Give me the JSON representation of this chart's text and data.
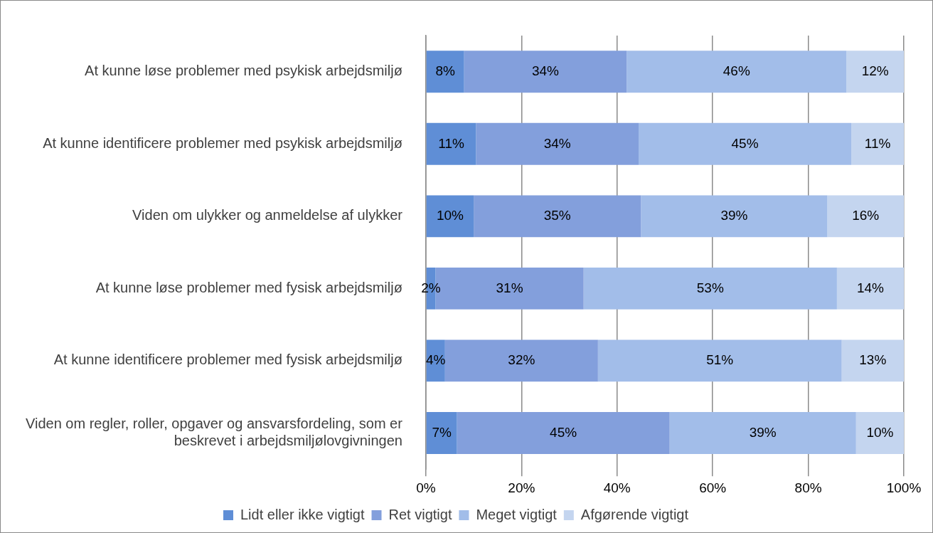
{
  "chart_data": {
    "type": "bar",
    "orientation": "horizontal",
    "stacked": true,
    "categories": [
      "At kunne løse problemer med psykisk arbejdsmiljø",
      "At kunne identificere problemer med psykisk arbejdsmiljø",
      "Viden om ulykker og anmeldelse af ulykker",
      "At kunne løse problemer med fysisk arbejdsmiljø",
      "At kunne identificere problemer med fysisk arbejdsmiljø",
      "Viden om regler, roller, opgaver og ansvarsfordeling, som er beskrevet i arbejdsmiljølovgivningen"
    ],
    "series": [
      {
        "name": "Lidt eller ikke vigtigt",
        "color": "#5f8ed6",
        "values": [
          8,
          10.5,
          10,
          2,
          4,
          6.5
        ],
        "value_labels": [
          "8%",
          "11%",
          "10%",
          "2%",
          "4%",
          "7%"
        ]
      },
      {
        "name": "Ret vigtigt",
        "color": "#839fdc",
        "values": [
          34,
          34,
          35,
          31,
          32,
          44.5
        ],
        "value_labels": [
          "34%",
          "34%",
          "35%",
          "31%",
          "32%",
          "45%"
        ]
      },
      {
        "name": "Meget vigtigt",
        "color": "#a2bde9",
        "values": [
          46,
          44.5,
          39,
          53,
          51,
          39
        ],
        "value_labels": [
          "46%",
          "45%",
          "39%",
          "53%",
          "51%",
          "39%"
        ]
      },
      {
        "name": "Afgørende vigtigt",
        "color": "#c4d5ef",
        "values": [
          12,
          11,
          16,
          14,
          13,
          10
        ],
        "value_labels": [
          "12%",
          "11%",
          "16%",
          "14%",
          "13%",
          "10%"
        ]
      }
    ],
    "xlim": [
      0,
      100
    ],
    "xticks": [
      {
        "value": 0,
        "label": "0%"
      },
      {
        "value": 20,
        "label": "20%"
      },
      {
        "value": 40,
        "label": "40%"
      },
      {
        "value": 60,
        "label": "60%"
      },
      {
        "value": 80,
        "label": "80%"
      },
      {
        "value": 100,
        "label": "100%"
      }
    ],
    "grid": "x",
    "legend": "bottom"
  }
}
